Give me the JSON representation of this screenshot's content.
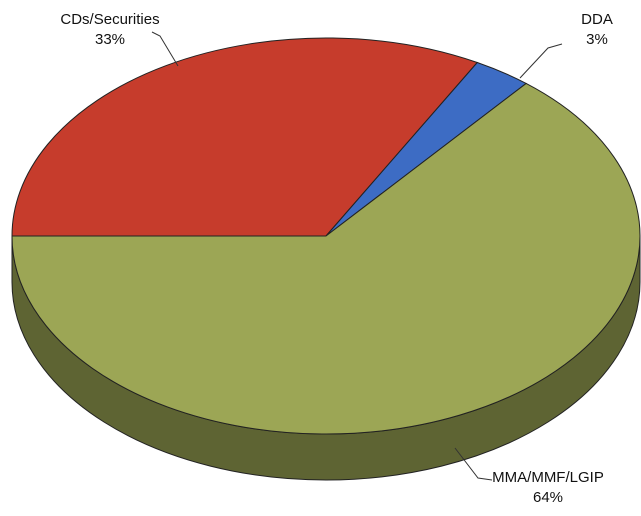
{
  "chart_data": {
    "type": "pie",
    "categories": [
      "CDs/Securities",
      "DDA",
      "MMA/MMF/LGIP"
    ],
    "values": [
      33,
      3,
      64
    ],
    "value_labels": [
      "33%",
      "3%",
      "64%"
    ],
    "colors": [
      "#c63c2c",
      "#3d6cc4",
      "#9ca655"
    ]
  }
}
